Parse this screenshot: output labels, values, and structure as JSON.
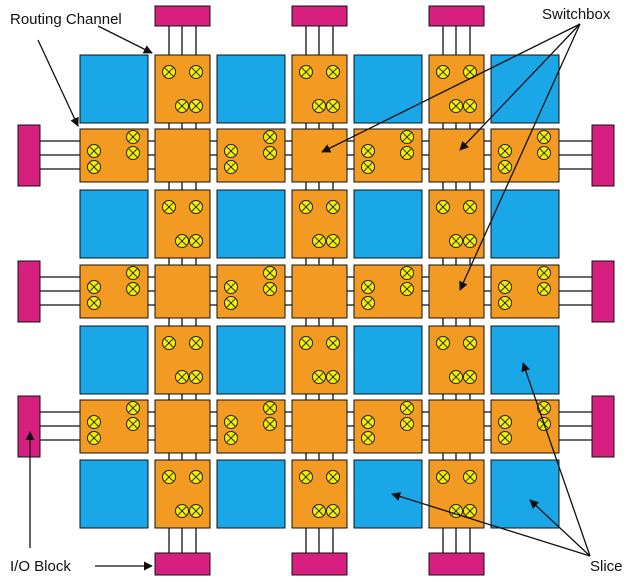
{
  "labels": {
    "routing_channel": "Routing Channel",
    "switchbox": "Switchbox",
    "io_block": "I/O Block",
    "slice": "Slice"
  },
  "colors": {
    "slice": "#1aa7e8",
    "channel": "#f29a21",
    "switch": "#f4f000",
    "io_block": "#d61f7e",
    "wire": "#111111"
  },
  "grid": {
    "slice_rows": 4,
    "slice_cols": 4,
    "switchbox_rows": 3,
    "switchbox_cols": 3
  }
}
